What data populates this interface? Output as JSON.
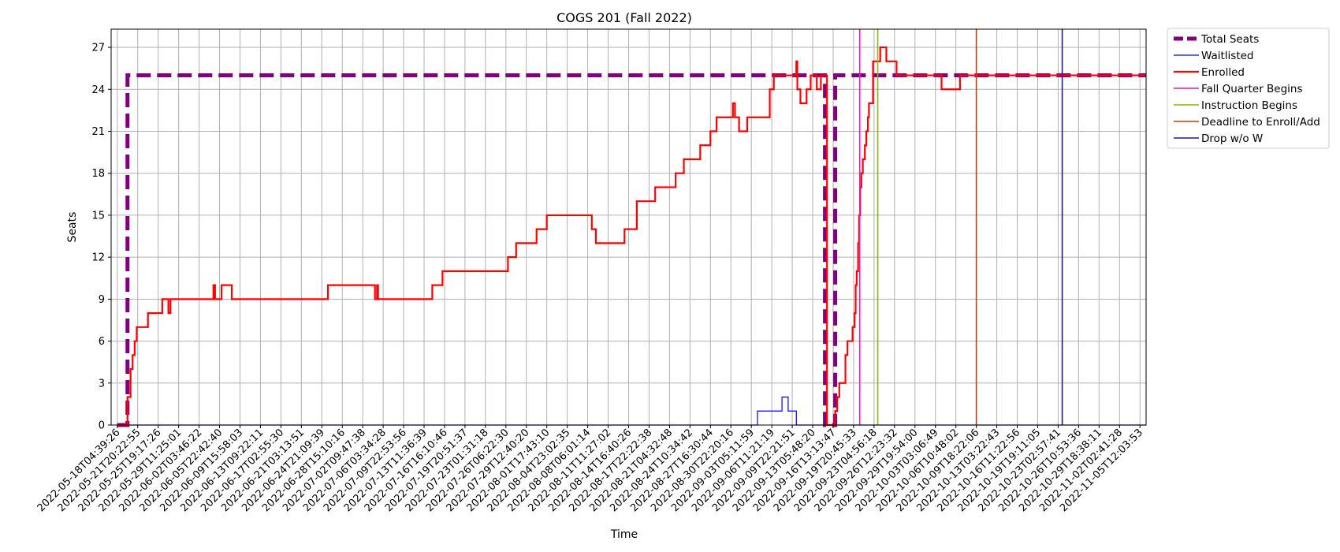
{
  "chart_data": {
    "type": "line",
    "title": "COGS 201 (Fall 2022)",
    "xlabel": "Time",
    "ylabel": "Seats",
    "ylim": [
      0,
      28.3
    ],
    "yticks": [
      0,
      3,
      6,
      9,
      12,
      15,
      18,
      21,
      24,
      27
    ],
    "grid": true,
    "legend_position": "outside-top-right",
    "x_tick_labels": [
      "2022-05-18T04:39:26",
      "2022-05-21T20:22:55",
      "2022-05-25T19:17:26",
      "2022-05-29T11:25:01",
      "2022-06-02T03:46:22",
      "2022-06-05T22:42:40",
      "2022-06-09T15:58:03",
      "2022-06-13T09:22:11",
      "2022-06-17T02:55:30",
      "2022-06-21T03:13:51",
      "2022-06-24T21:09:39",
      "2022-06-28T15:10:16",
      "2022-07-02T09:47:38",
      "2022-07-06T03:34:28",
      "2022-07-09T22:53:56",
      "2022-07-13T11:36:39",
      "2022-07-16T16:10:46",
      "2022-07-19T20:51:37",
      "2022-07-23T01:31:18",
      "2022-07-26T06:22:30",
      "2022-07-29T12:40:20",
      "2022-08-01T17:43:10",
      "2022-08-04T23:02:35",
      "2022-08-08T06:01:14",
      "2022-08-11T11:27:02",
      "2022-08-14T16:40:26",
      "2022-08-17T22:22:38",
      "2022-08-21T04:32:48",
      "2022-08-24T10:34:42",
      "2022-08-27T16:30:44",
      "2022-08-30T22:20:16",
      "2022-09-03T05:11:59",
      "2022-09-06T11:21:19",
      "2022-09-09T22:21:51",
      "2022-09-13T05:48:20",
      "2022-09-16T13:13:47",
      "2022-09-19T20:45:33",
      "2022-09-23T04:56:18",
      "2022-09-26T12:23:32",
      "2022-09-29T19:54:00",
      "2022-10-03T03:06:49",
      "2022-10-06T10:48:02",
      "2022-10-09T18:22:06",
      "2022-10-13T03:22:43",
      "2022-10-16T11:22:56",
      "2022-10-19T19:11:05",
      "2022-10-23T02:57:41",
      "2022-10-26T10:53:36",
      "2022-10-29T18:38:11",
      "2022-11-02T02:41:28",
      "2022-11-05T12:03:53"
    ],
    "series": [
      {
        "name": "Total Seats",
        "color": "#800080",
        "style": "dashed-thick",
        "points": [
          [
            0,
            0
          ],
          [
            0.5,
            0
          ],
          [
            0.5,
            25
          ],
          [
            34.6,
            25
          ],
          [
            34.6,
            0
          ],
          [
            35.1,
            0
          ],
          [
            35.1,
            25
          ],
          [
            50.3,
            25
          ]
        ]
      },
      {
        "name": "Waitlisted",
        "color": "#0000ff",
        "style": "thin",
        "points": [
          [
            0,
            0
          ],
          [
            31.3,
            0
          ],
          [
            31.3,
            1
          ],
          [
            32.5,
            1
          ],
          [
            32.5,
            2
          ],
          [
            32.8,
            2
          ],
          [
            32.8,
            1
          ],
          [
            33.2,
            1
          ],
          [
            33.2,
            0
          ],
          [
            50.3,
            0
          ]
        ]
      },
      {
        "name": "Enrolled",
        "color": "#ff0000",
        "style": "solid",
        "points": [
          [
            0,
            0
          ],
          [
            0.5,
            0
          ],
          [
            0.5,
            2
          ],
          [
            0.65,
            2
          ],
          [
            0.65,
            4
          ],
          [
            0.75,
            4
          ],
          [
            0.75,
            5
          ],
          [
            0.85,
            5
          ],
          [
            0.85,
            6
          ],
          [
            0.95,
            6
          ],
          [
            0.95,
            7
          ],
          [
            1.5,
            7
          ],
          [
            1.5,
            8
          ],
          [
            2.2,
            8
          ],
          [
            2.2,
            9
          ],
          [
            2.5,
            9
          ],
          [
            2.5,
            8
          ],
          [
            2.6,
            8
          ],
          [
            2.6,
            9
          ],
          [
            4.7,
            9
          ],
          [
            4.7,
            10
          ],
          [
            4.78,
            10
          ],
          [
            4.78,
            9
          ],
          [
            5.1,
            9
          ],
          [
            5.1,
            10
          ],
          [
            5.6,
            10
          ],
          [
            5.6,
            9
          ],
          [
            10.3,
            9
          ],
          [
            10.3,
            10
          ],
          [
            12.6,
            10
          ],
          [
            12.6,
            9
          ],
          [
            12.7,
            9
          ],
          [
            12.7,
            10
          ],
          [
            12.75,
            10
          ],
          [
            12.75,
            9
          ],
          [
            15.4,
            9
          ],
          [
            15.4,
            10
          ],
          [
            15.9,
            10
          ],
          [
            15.9,
            11
          ],
          [
            19.1,
            11
          ],
          [
            19.1,
            12
          ],
          [
            19.5,
            12
          ],
          [
            19.5,
            13
          ],
          [
            20.5,
            13
          ],
          [
            20.5,
            14
          ],
          [
            21,
            14
          ],
          [
            21,
            15
          ],
          [
            23.2,
            15
          ],
          [
            23.2,
            14
          ],
          [
            23.4,
            14
          ],
          [
            23.4,
            13
          ],
          [
            24.8,
            13
          ],
          [
            24.8,
            14
          ],
          [
            25.4,
            14
          ],
          [
            25.4,
            16
          ],
          [
            26.3,
            16
          ],
          [
            26.3,
            17
          ],
          [
            27.3,
            17
          ],
          [
            27.3,
            18
          ],
          [
            27.7,
            18
          ],
          [
            27.7,
            19
          ],
          [
            28.5,
            19
          ],
          [
            28.5,
            20
          ],
          [
            29,
            20
          ],
          [
            29,
            21
          ],
          [
            29.3,
            21
          ],
          [
            29.3,
            22
          ],
          [
            30.1,
            22
          ],
          [
            30.1,
            23
          ],
          [
            30.2,
            23
          ],
          [
            30.2,
            22
          ],
          [
            30.4,
            22
          ],
          [
            30.4,
            21
          ],
          [
            30.8,
            21
          ],
          [
            30.8,
            22
          ],
          [
            31.9,
            22
          ],
          [
            31.9,
            24
          ],
          [
            32.1,
            24
          ],
          [
            32.1,
            25
          ],
          [
            33.2,
            25
          ],
          [
            33.2,
            26
          ],
          [
            33.25,
            26
          ],
          [
            33.25,
            24
          ],
          [
            33.4,
            24
          ],
          [
            33.4,
            23
          ],
          [
            33.7,
            23
          ],
          [
            33.7,
            24
          ],
          [
            33.9,
            24
          ],
          [
            33.9,
            25
          ],
          [
            34.2,
            25
          ],
          [
            34.2,
            24
          ],
          [
            34.4,
            24
          ],
          [
            34.4,
            25
          ],
          [
            34.7,
            25
          ],
          [
            34.7,
            0
          ],
          [
            35.1,
            0
          ],
          [
            35.1,
            1
          ],
          [
            35.2,
            1
          ],
          [
            35.2,
            2
          ],
          [
            35.3,
            2
          ],
          [
            35.3,
            3
          ],
          [
            35.6,
            3
          ],
          [
            35.6,
            5
          ],
          [
            35.7,
            5
          ],
          [
            35.7,
            6
          ],
          [
            35.95,
            6
          ],
          [
            35.95,
            7
          ],
          [
            36.05,
            7
          ],
          [
            36.05,
            8
          ],
          [
            36.1,
            8
          ],
          [
            36.1,
            10
          ],
          [
            36.15,
            10
          ],
          [
            36.15,
            11
          ],
          [
            36.22,
            11
          ],
          [
            36.22,
            13
          ],
          [
            36.27,
            13
          ],
          [
            36.27,
            15
          ],
          [
            36.32,
            15
          ],
          [
            36.32,
            17
          ],
          [
            36.38,
            17
          ],
          [
            36.38,
            18
          ],
          [
            36.45,
            18
          ],
          [
            36.45,
            19
          ],
          [
            36.55,
            19
          ],
          [
            36.55,
            20
          ],
          [
            36.62,
            20
          ],
          [
            36.62,
            21
          ],
          [
            36.7,
            21
          ],
          [
            36.7,
            22
          ],
          [
            36.75,
            22
          ],
          [
            36.75,
            23
          ],
          [
            36.95,
            23
          ],
          [
            36.95,
            26
          ],
          [
            37.3,
            26
          ],
          [
            37.3,
            27
          ],
          [
            37.6,
            27
          ],
          [
            37.6,
            26
          ],
          [
            38.1,
            26
          ],
          [
            38.1,
            25
          ],
          [
            40.3,
            25
          ],
          [
            40.3,
            24
          ],
          [
            41.2,
            24
          ],
          [
            41.2,
            25
          ],
          [
            50.3,
            25
          ]
        ]
      }
    ],
    "events": [
      {
        "name": "Fall Quarter Begins",
        "x": 36.3,
        "color": "#e61ab8"
      },
      {
        "name": "Instruction Begins",
        "x": 37.18,
        "color": "#8ab50f"
      },
      {
        "name": "Deadline to Enroll/Add",
        "x": 42.0,
        "color": "#c53a10"
      },
      {
        "name": "Drop w/o W",
        "x": 46.2,
        "color": "#1f1a8c"
      }
    ],
    "xlim": [
      -0.3,
      50.3
    ]
  }
}
